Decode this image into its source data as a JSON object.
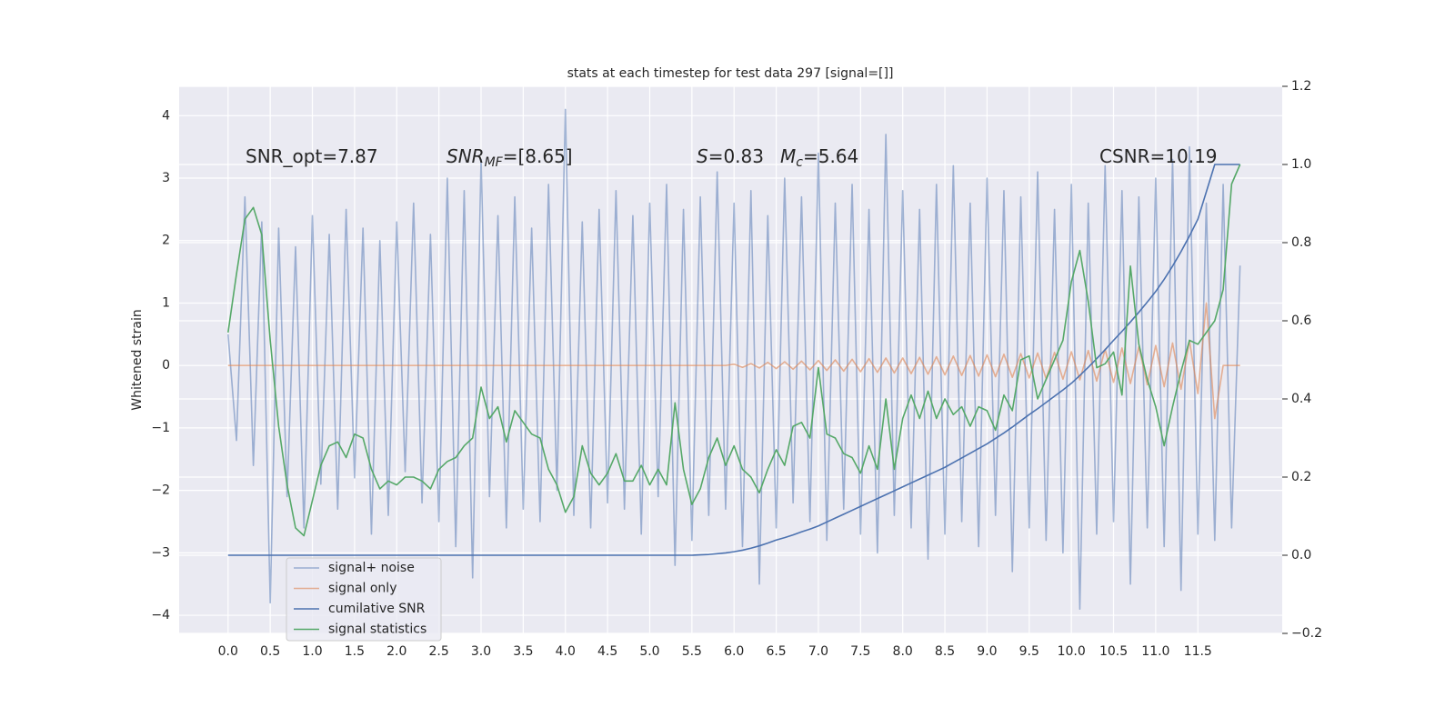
{
  "chart_data": {
    "type": "line",
    "title": "stats at each timestep for test data 297 [signal=[]]",
    "ylabel": "Whitened strain",
    "annotations": [
      {
        "text": "SNR_opt=7.87"
      },
      {
        "base": "SNR",
        "sub": "MF",
        "rest": "=[8.65]"
      },
      {
        "base": "S",
        "rest": "=0.83"
      },
      {
        "base": "M",
        "sub": "c",
        "rest": "=5.64"
      },
      {
        "text": "CSNR=10.19"
      }
    ],
    "x": [
      0,
      0.1,
      0.2,
      0.3,
      0.4,
      0.5,
      0.6,
      0.7,
      0.8,
      0.9,
      1.0,
      1.1,
      1.2,
      1.3,
      1.4,
      1.5,
      1.6,
      1.7,
      1.8,
      1.9,
      2.0,
      2.1,
      2.2,
      2.3,
      2.4,
      2.5,
      2.6,
      2.7,
      2.8,
      2.9,
      3.0,
      3.1,
      3.2,
      3.3,
      3.4,
      3.5,
      3.6,
      3.7,
      3.8,
      3.9,
      4.0,
      4.1,
      4.2,
      4.3,
      4.4,
      4.5,
      4.6,
      4.7,
      4.8,
      4.9,
      5.0,
      5.1,
      5.2,
      5.3,
      5.4,
      5.5,
      5.6,
      5.7,
      5.8,
      5.9,
      6.0,
      6.1,
      6.2,
      6.3,
      6.4,
      6.5,
      6.6,
      6.7,
      6.8,
      6.9,
      7.0,
      7.1,
      7.2,
      7.3,
      7.4,
      7.5,
      7.6,
      7.7,
      7.8,
      7.9,
      8.0,
      8.1,
      8.2,
      8.3,
      8.4,
      8.5,
      8.6,
      8.7,
      8.8,
      8.9,
      9.0,
      9.1,
      9.2,
      9.3,
      9.4,
      9.5,
      9.6,
      9.7,
      9.8,
      9.9,
      10.0,
      10.1,
      10.2,
      10.3,
      10.4,
      10.5,
      10.6,
      10.7,
      10.8,
      10.9,
      11.0,
      11.1,
      11.2,
      11.3,
      11.4,
      11.5,
      11.6,
      11.7,
      11.8,
      11.9,
      12.0
    ],
    "series": [
      {
        "name": "signal+ noise",
        "color": "#4c72b0",
        "opacity": 0.5,
        "values": [
          0.5,
          -1.2,
          2.7,
          -1.6,
          2.3,
          -3.8,
          2.2,
          -2.1,
          1.9,
          -2.6,
          2.4,
          -1.9,
          2.1,
          -2.3,
          2.5,
          -1.8,
          2.2,
          -2.7,
          2.0,
          -2.4,
          2.3,
          -1.7,
          2.6,
          -2.2,
          2.1,
          -2.5,
          3.0,
          -2.9,
          2.8,
          -3.4,
          3.3,
          -2.1,
          2.4,
          -2.6,
          2.7,
          -2.3,
          2.2,
          -2.5,
          2.9,
          -2.0,
          4.1,
          -2.4,
          2.3,
          -2.6,
          2.5,
          -2.2,
          2.8,
          -2.3,
          2.4,
          -2.7,
          2.6,
          -2.1,
          2.9,
          -3.2,
          2.5,
          -2.8,
          2.7,
          -2.4,
          3.1,
          -2.3,
          2.6,
          -2.9,
          2.8,
          -3.5,
          2.4,
          -2.6,
          3.0,
          -2.2,
          2.7,
          -2.5,
          3.4,
          -2.8,
          2.6,
          -2.3,
          2.9,
          -2.7,
          2.5,
          -3.0,
          3.7,
          -2.4,
          2.8,
          -2.6,
          2.5,
          -3.1,
          2.9,
          -2.7,
          3.2,
          -2.5,
          2.6,
          -2.9,
          3.0,
          -2.4,
          2.8,
          -3.3,
          2.7,
          -2.6,
          3.1,
          -2.8,
          2.5,
          -3.0,
          2.9,
          -3.9,
          2.6,
          -2.7,
          3.2,
          -2.5,
          2.8,
          -3.5,
          2.7,
          -2.6,
          3.0,
          -2.9,
          3.3,
          -3.6,
          3.5,
          -2.7,
          2.6,
          -2.8,
          2.9,
          -2.6,
          1.6
        ]
      },
      {
        "name": "signal only",
        "color": "#dd8452",
        "opacity": 0.6,
        "values": [
          0,
          0,
          0,
          0,
          0,
          0,
          0,
          0,
          0,
          0,
          0,
          0,
          0,
          0,
          0,
          0,
          0,
          0,
          0,
          0,
          0,
          0,
          0,
          0,
          0,
          0,
          0,
          0,
          0,
          0,
          0,
          0,
          0,
          0,
          0,
          0,
          0,
          0,
          0,
          0,
          0,
          0,
          0,
          0,
          0,
          0,
          0,
          0,
          0,
          0,
          0,
          0,
          0,
          0,
          0,
          0,
          0,
          0,
          0,
          0,
          0.02,
          -0.03,
          0.03,
          -0.04,
          0.05,
          -0.05,
          0.06,
          -0.06,
          0.07,
          -0.07,
          0.08,
          -0.08,
          0.09,
          -0.09,
          0.1,
          -0.1,
          0.11,
          -0.11,
          0.12,
          -0.12,
          0.12,
          -0.13,
          0.13,
          -0.14,
          0.14,
          -0.15,
          0.15,
          -0.16,
          0.16,
          -0.17,
          0.17,
          -0.18,
          0.18,
          -0.19,
          0.19,
          -0.2,
          0.2,
          -0.21,
          0.21,
          -0.22,
          0.22,
          -0.23,
          0.24,
          -0.25,
          0.26,
          -0.27,
          0.28,
          -0.29,
          0.3,
          -0.31,
          0.32,
          -0.34,
          0.36,
          -0.38,
          0.4,
          -0.45,
          1.0,
          -0.85,
          0,
          0,
          0
        ]
      },
      {
        "name": "cumilative SNR",
        "color": "#4c72b0",
        "opacity": 1,
        "axis": "y2",
        "values": [
          0,
          0,
          0,
          0,
          0,
          0,
          0,
          0,
          0,
          0,
          0,
          0,
          0,
          0,
          0,
          0,
          0,
          0,
          0,
          0,
          0,
          0,
          0,
          0,
          0,
          0,
          0,
          0,
          0,
          0,
          0,
          0,
          0,
          0,
          0,
          0,
          0,
          0,
          0,
          0,
          0,
          0,
          0,
          0,
          0,
          0,
          0,
          0,
          0,
          0,
          0,
          0,
          0,
          0,
          0,
          0,
          0.001,
          0.002,
          0.004,
          0.006,
          0.009,
          0.013,
          0.018,
          0.024,
          0.031,
          0.039,
          0.045,
          0.052,
          0.06,
          0.067,
          0.075,
          0.085,
          0.095,
          0.105,
          0.115,
          0.125,
          0.135,
          0.145,
          0.155,
          0.165,
          0.175,
          0.185,
          0.195,
          0.205,
          0.215,
          0.225,
          0.237,
          0.249,
          0.261,
          0.273,
          0.285,
          0.299,
          0.313,
          0.328,
          0.344,
          0.36,
          0.375,
          0.391,
          0.407,
          0.423,
          0.44,
          0.46,
          0.481,
          0.503,
          0.526,
          0.55,
          0.573,
          0.597,
          0.622,
          0.648,
          0.675,
          0.706,
          0.74,
          0.777,
          0.817,
          0.86,
          0.93,
          1.0,
          1.0,
          1.0,
          1.0
        ]
      },
      {
        "name": "signal statistics",
        "color": "#55a868",
        "opacity": 1,
        "axis": "y2",
        "values": [
          0.57,
          0.72,
          0.86,
          0.89,
          0.82,
          0.55,
          0.33,
          0.18,
          0.07,
          0.05,
          0.14,
          0.23,
          0.28,
          0.29,
          0.25,
          0.31,
          0.3,
          0.22,
          0.17,
          0.19,
          0.18,
          0.2,
          0.2,
          0.19,
          0.17,
          0.22,
          0.24,
          0.25,
          0.28,
          0.3,
          0.43,
          0.35,
          0.38,
          0.29,
          0.37,
          0.34,
          0.31,
          0.3,
          0.22,
          0.18,
          0.11,
          0.15,
          0.28,
          0.21,
          0.18,
          0.21,
          0.26,
          0.19,
          0.19,
          0.23,
          0.18,
          0.22,
          0.18,
          0.39,
          0.22,
          0.13,
          0.17,
          0.25,
          0.3,
          0.23,
          0.28,
          0.22,
          0.2,
          0.16,
          0.22,
          0.27,
          0.23,
          0.33,
          0.34,
          0.3,
          0.48,
          0.31,
          0.3,
          0.26,
          0.25,
          0.21,
          0.28,
          0.22,
          0.4,
          0.22,
          0.35,
          0.41,
          0.35,
          0.42,
          0.35,
          0.4,
          0.36,
          0.38,
          0.33,
          0.38,
          0.37,
          0.32,
          0.41,
          0.37,
          0.5,
          0.51,
          0.4,
          0.45,
          0.5,
          0.55,
          0.7,
          0.78,
          0.65,
          0.48,
          0.49,
          0.52,
          0.41,
          0.74,
          0.54,
          0.45,
          0.38,
          0.28,
          0.38,
          0.47,
          0.55,
          0.54,
          0.57,
          0.6,
          0.68,
          0.95,
          1.0
        ]
      }
    ],
    "xlim": [
      -0.58,
      12.5
    ],
    "xticks": [
      {
        "value": 0,
        "label": "0.0"
      },
      0.5,
      {
        "value": 1,
        "label": "1.0"
      },
      1.5,
      {
        "value": 2,
        "label": "2.0"
      },
      2.5,
      {
        "value": 3,
        "label": "3.0"
      },
      3.5,
      {
        "value": 4,
        "label": "4.0"
      },
      4.5,
      {
        "value": 5,
        "label": "5.0"
      },
      5.5,
      {
        "value": 6,
        "label": "6.0"
      },
      6.5,
      {
        "value": 7,
        "label": "7.0"
      },
      7.5,
      {
        "value": 8,
        "label": "8.0"
      },
      8.5,
      {
        "value": 9,
        "label": "9.0"
      },
      9.5,
      {
        "value": 10,
        "label": "10.0"
      },
      10.5,
      {
        "value": 11,
        "label": "11.0"
      },
      11.5
    ],
    "ylim": [
      -4.29,
      4.47
    ],
    "yticks": [
      {
        "value": -4,
        "label": "−4"
      },
      {
        "value": -3,
        "label": "−3"
      },
      {
        "value": -2,
        "label": "−2"
      },
      {
        "value": -1,
        "label": "−1"
      },
      0,
      1,
      2,
      3,
      4
    ],
    "y2lim": [
      -0.2,
      1.2
    ],
    "y2ticks": [
      {
        "value": -0.2,
        "label": "−0.2"
      },
      {
        "value": 0,
        "label": "0.0"
      },
      0.2,
      0.4,
      0.6,
      0.8,
      {
        "value": 1,
        "label": "1.0"
      },
      1.2
    ],
    "grid": true,
    "legend": "lower left"
  }
}
